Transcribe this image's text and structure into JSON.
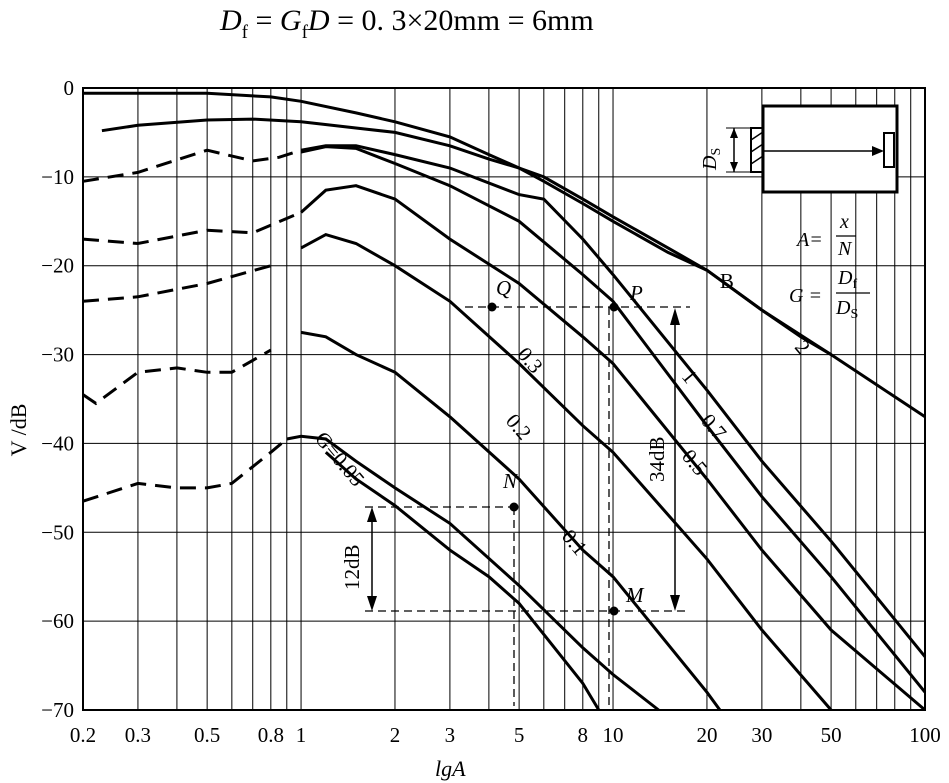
{
  "title": {
    "D": "D",
    "f": "f",
    "eq1": " = ",
    "G": "G",
    "f2": "f",
    "D2": "D",
    "eq2": " = 0. 3×20mm = 6mm"
  },
  "chart_data": {
    "type": "line",
    "xlabel": "lgA",
    "ylabel": "V /dB",
    "x_scale": "log",
    "xlim": [
      0.2,
      100
    ],
    "ylim": [
      -70,
      0
    ],
    "grid": true,
    "x_tick_labels": [
      "0.2",
      "0.3",
      "0.5",
      "0.8",
      "1",
      "2",
      "3",
      "5",
      "8",
      "10",
      "20",
      "30",
      "50",
      "100"
    ],
    "x_tick_values": [
      0.2,
      0.3,
      0.5,
      0.8,
      1,
      2,
      3,
      5,
      8,
      10,
      20,
      30,
      50,
      100
    ],
    "y_tick_labels": [
      "0",
      "−10",
      "−20",
      "−30",
      "−40",
      "−50",
      "−60",
      "−70"
    ],
    "y_tick_values": [
      0,
      -10,
      -20,
      -30,
      -40,
      -50,
      -60,
      -70
    ],
    "series": [
      {
        "name": "B",
        "label": "B",
        "dashed_until": null,
        "points": [
          [
            0.2,
            -0.6
          ],
          [
            0.5,
            -0.6
          ],
          [
            0.8,
            -1
          ],
          [
            1,
            -1.5
          ],
          [
            1.5,
            -2.8
          ],
          [
            2,
            -3.8
          ],
          [
            3,
            -5.5
          ],
          [
            4,
            -7.5
          ],
          [
            5,
            -9
          ],
          [
            6,
            -10.5
          ],
          [
            8,
            -13
          ],
          [
            10,
            -15
          ],
          [
            15,
            -18.5
          ],
          [
            20,
            -20.5
          ],
          [
            30,
            -25
          ],
          [
            50,
            -30
          ],
          [
            100,
            -37
          ]
        ]
      },
      {
        "name": "2",
        "label": "2",
        "dashed_until": null,
        "points": [
          [
            0.23,
            -4.8
          ],
          [
            0.3,
            -4.2
          ],
          [
            0.5,
            -3.6
          ],
          [
            0.7,
            -3.5
          ],
          [
            1,
            -3.8
          ],
          [
            2,
            -5
          ],
          [
            3,
            -6.5
          ],
          [
            4,
            -8
          ],
          [
            5,
            -9
          ],
          [
            6,
            -10
          ],
          [
            8,
            -12.5
          ],
          [
            10,
            -14.5
          ],
          [
            15,
            -18
          ],
          [
            20,
            -20.5
          ],
          [
            30,
            -25
          ],
          [
            40,
            -28
          ],
          [
            50,
            -30
          ]
        ]
      },
      {
        "name": "1",
        "label": "1",
        "dashed_until": 1,
        "points": [
          [
            0.2,
            -10.5
          ],
          [
            0.3,
            -9.5
          ],
          [
            0.5,
            -7
          ],
          [
            0.7,
            -8.2
          ],
          [
            0.85,
            -7.8
          ],
          [
            1,
            -7
          ],
          [
            1.2,
            -6.5
          ],
          [
            1.5,
            -6.5
          ],
          [
            2,
            -7.5
          ],
          [
            3,
            -9
          ],
          [
            5,
            -12
          ],
          [
            6,
            -12.5
          ],
          [
            8,
            -17
          ],
          [
            10,
            -21
          ],
          [
            20,
            -34
          ],
          [
            30,
            -42
          ],
          [
            50,
            -51
          ],
          [
            100,
            -64
          ]
        ]
      },
      {
        "name": "0.7",
        "label": "0.7",
        "dashed_until": null,
        "points": [
          [
            1,
            -7.2
          ],
          [
            1.2,
            -6.6
          ],
          [
            1.5,
            -6.8
          ],
          [
            2,
            -8.5
          ],
          [
            3,
            -11
          ],
          [
            5,
            -15
          ],
          [
            8,
            -21
          ],
          [
            10,
            -24
          ],
          [
            20,
            -38
          ],
          [
            30,
            -46
          ],
          [
            50,
            -55
          ],
          [
            100,
            -68
          ]
        ]
      },
      {
        "name": "0.5",
        "label": "0.5",
        "dashed_until": 1,
        "points": [
          [
            0.2,
            -17
          ],
          [
            0.3,
            -17.5
          ],
          [
            0.5,
            -16
          ],
          [
            0.7,
            -16.3
          ],
          [
            1,
            -14
          ],
          [
            1.2,
            -11.5
          ],
          [
            1.5,
            -11
          ],
          [
            2,
            -12.5
          ],
          [
            3,
            -17
          ],
          [
            5,
            -22
          ],
          [
            8,
            -28
          ],
          [
            10,
            -31
          ],
          [
            20,
            -44
          ],
          [
            30,
            -52
          ],
          [
            50,
            -61
          ],
          [
            100,
            -70
          ]
        ]
      },
      {
        "name": "0.3",
        "label": "0.3",
        "dashed_until": 0.9,
        "points": [
          [
            0.2,
            -24
          ],
          [
            0.3,
            -23.5
          ],
          [
            0.5,
            -22
          ],
          [
            0.8,
            -20
          ],
          [
            1,
            -18
          ],
          [
            1.2,
            -16.5
          ],
          [
            1.5,
            -17.5
          ],
          [
            2,
            -20
          ],
          [
            3,
            -24
          ],
          [
            5,
            -31
          ],
          [
            8,
            -38
          ],
          [
            10,
            -41
          ],
          [
            20,
            -53
          ],
          [
            30,
            -61
          ],
          [
            50,
            -70
          ]
        ]
      },
      {
        "name": "0.2",
        "label": "0.2",
        "dashed_until": 0.9,
        "points": [
          [
            0.2,
            -34.5
          ],
          [
            0.22,
            -35.5
          ],
          [
            0.3,
            -32
          ],
          [
            0.4,
            -31.5
          ],
          [
            0.5,
            -32
          ],
          [
            0.6,
            -32
          ],
          [
            0.8,
            -29.5
          ],
          [
            1,
            -27.5
          ],
          [
            1.2,
            -28
          ],
          [
            1.5,
            -30
          ],
          [
            2,
            -32
          ],
          [
            3,
            -37
          ],
          [
            5,
            -44
          ],
          [
            8,
            -52
          ],
          [
            10,
            -55
          ],
          [
            20,
            -68
          ],
          [
            22,
            -70
          ]
        ]
      },
      {
        "name": "0.1",
        "label": "0.1",
        "dashed_until": 0.9,
        "points": [
          [
            0.2,
            -46.5
          ],
          [
            0.3,
            -44.5
          ],
          [
            0.4,
            -45
          ],
          [
            0.5,
            -45
          ],
          [
            0.6,
            -44.5
          ],
          [
            0.8,
            -41
          ],
          [
            0.9,
            -39.5
          ],
          [
            1,
            -39.2
          ],
          [
            1.2,
            -39.5
          ],
          [
            1.5,
            -42
          ],
          [
            2,
            -45
          ],
          [
            3,
            -49
          ],
          [
            5,
            -56
          ],
          [
            8,
            -63
          ],
          [
            10,
            -66
          ],
          [
            14,
            -70
          ]
        ]
      },
      {
        "name": "G=0.05",
        "label": "G=0.05",
        "dashed_until": null,
        "points": [
          [
            1.2,
            -41
          ],
          [
            1.5,
            -44
          ],
          [
            2,
            -47
          ],
          [
            3,
            -52
          ],
          [
            4,
            -55
          ],
          [
            5,
            -58
          ],
          [
            8,
            -67
          ],
          [
            9,
            -70
          ]
        ]
      }
    ],
    "annotations": {
      "Q": "Q",
      "P": "P",
      "N": "N",
      "M": "M",
      "db34": "34dB",
      "db12": "12dB",
      "inset": {
        "Ds": "D",
        "Ds_sub": "S",
        "A_eq": "A=",
        "A_num": "x",
        "A_den": "N",
        "G_eq": "G =",
        "G_num": "D",
        "G_num_sub": "f",
        "G_den": "D",
        "G_den_sub": "S"
      }
    }
  }
}
